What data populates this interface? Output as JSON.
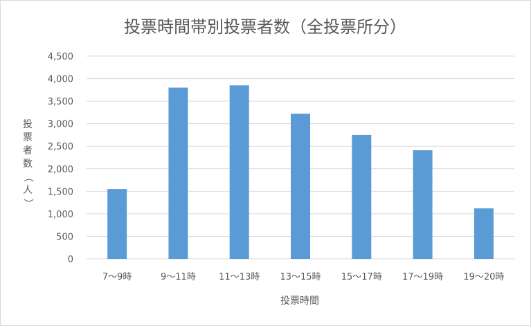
{
  "chart_data": {
    "type": "bar",
    "title": "投票時間帯別投票者数（全投票所分）",
    "xlabel": "投票時間",
    "ylabel": "投票者数（人）",
    "categories": [
      "7〜9時",
      "9〜11時",
      "11〜13時",
      "13〜15時",
      "15〜17時",
      "17〜19時",
      "19〜20時"
    ],
    "values": [
      1550,
      3800,
      3850,
      3220,
      2750,
      2410,
      1120
    ],
    "ylim": [
      0,
      4500
    ],
    "yticks": [
      "0",
      "500",
      "1,000",
      "1,500",
      "2,000",
      "2,500",
      "3,000",
      "3,500",
      "4,000",
      "4,500"
    ],
    "grid": true,
    "bar_color": "#5b9bd5",
    "grid_color": "#d9d9d9"
  }
}
